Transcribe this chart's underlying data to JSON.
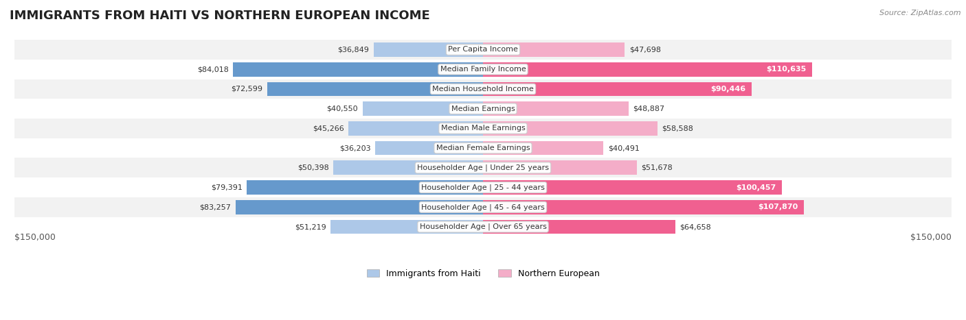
{
  "title": "IMMIGRANTS FROM HAITI VS NORTHERN EUROPEAN INCOME",
  "source": "Source: ZipAtlas.com",
  "categories": [
    "Per Capita Income",
    "Median Family Income",
    "Median Household Income",
    "Median Earnings",
    "Median Male Earnings",
    "Median Female Earnings",
    "Householder Age | Under 25 years",
    "Householder Age | 25 - 44 years",
    "Householder Age | 45 - 64 years",
    "Householder Age | Over 65 years"
  ],
  "haiti_values": [
    36849,
    84018,
    72599,
    40550,
    45266,
    36203,
    50398,
    79391,
    83257,
    51219
  ],
  "northern_values": [
    47698,
    110635,
    90446,
    48887,
    58588,
    40491,
    51678,
    100457,
    107870,
    64658
  ],
  "haiti_labels": [
    "$36,849",
    "$84,018",
    "$72,599",
    "$40,550",
    "$45,266",
    "$36,203",
    "$50,398",
    "$79,391",
    "$83,257",
    "$51,219"
  ],
  "northern_labels": [
    "$47,698",
    "$110,635",
    "$90,446",
    "$48,887",
    "$58,588",
    "$40,491",
    "$51,678",
    "$100,457",
    "$107,870",
    "$64,658"
  ],
  "haiti_color_light": "#adc8e8",
  "haiti_color_dark": "#6699cc",
  "northern_color_light": "#f4adc8",
  "northern_color_dark": "#f06090",
  "max_value": 150000,
  "bg_color": "#ffffff",
  "row_bg_even": "#f2f2f2",
  "row_bg_odd": "#ffffff",
  "legend_haiti": "Immigrants from Haiti",
  "legend_northern": "Northern European",
  "title_fontsize": 13,
  "label_fontsize": 8.5,
  "axis_label": "$150,000",
  "dark_threshold": 60000,
  "label_dark_threshold": 75000
}
